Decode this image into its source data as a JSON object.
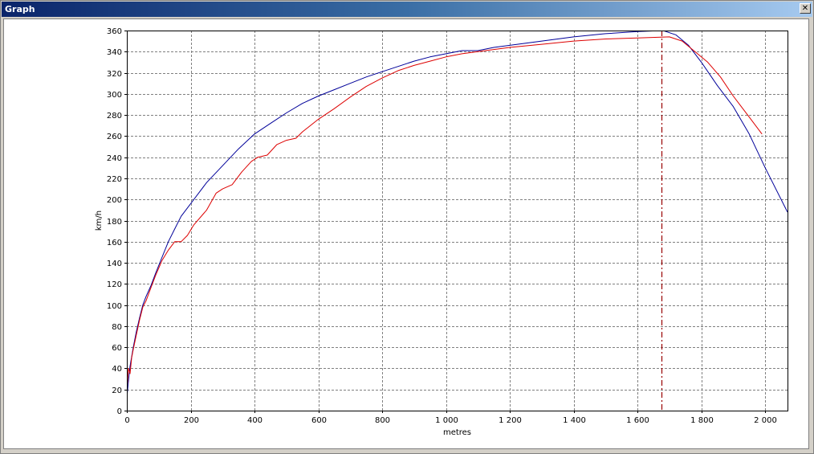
{
  "window": {
    "title": "Graph",
    "close_glyph": "✕"
  },
  "chart_data": {
    "type": "line",
    "title": "",
    "xlabel": "metres",
    "ylabel": "km/h",
    "xlim": [
      0,
      2070
    ],
    "ylim": [
      0,
      360
    ],
    "grid": true,
    "x_ticks": [
      0,
      200,
      400,
      600,
      800,
      1000,
      1200,
      1400,
      1600,
      1800,
      2000
    ],
    "x_tick_labels": [
      "0",
      "200",
      "400",
      "600",
      "800",
      "1 000",
      "1 200",
      "1 400",
      "1 600",
      "1 800",
      "2 000"
    ],
    "y_ticks": [
      0,
      20,
      40,
      60,
      80,
      100,
      120,
      140,
      160,
      180,
      200,
      220,
      240,
      260,
      280,
      300,
      320,
      340,
      360
    ],
    "y_tick_labels": [
      "0",
      "20",
      "40",
      "60",
      "80",
      "100",
      "120",
      "140",
      "160",
      "180",
      "200",
      "220",
      "240",
      "260",
      "280",
      "300",
      "320",
      "340",
      "360"
    ],
    "marker_line": {
      "x": 1675,
      "color": "#990000"
    },
    "series": [
      {
        "color": "#000099",
        "points": [
          [
            0,
            12
          ],
          [
            5,
            28
          ],
          [
            10,
            42
          ],
          [
            20,
            60
          ],
          [
            30,
            75
          ],
          [
            40,
            88
          ],
          [
            50,
            100
          ],
          [
            60,
            108
          ],
          [
            75,
            118
          ],
          [
            90,
            130
          ],
          [
            110,
            145
          ],
          [
            130,
            160
          ],
          [
            150,
            172
          ],
          [
            170,
            184
          ],
          [
            200,
            196
          ],
          [
            250,
            216
          ],
          [
            300,
            232
          ],
          [
            350,
            248
          ],
          [
            400,
            262
          ],
          [
            450,
            272
          ],
          [
            500,
            282
          ],
          [
            550,
            291
          ],
          [
            600,
            298
          ],
          [
            650,
            304
          ],
          [
            700,
            310
          ],
          [
            750,
            316
          ],
          [
            800,
            321
          ],
          [
            850,
            326
          ],
          [
            900,
            331
          ],
          [
            950,
            335
          ],
          [
            1000,
            338
          ],
          [
            1050,
            341
          ],
          [
            1100,
            341
          ],
          [
            1150,
            344
          ],
          [
            1200,
            346
          ],
          [
            1300,
            350
          ],
          [
            1400,
            354
          ],
          [
            1500,
            357
          ],
          [
            1600,
            359
          ],
          [
            1680,
            360
          ],
          [
            1720,
            356
          ],
          [
            1760,
            346
          ],
          [
            1800,
            330
          ],
          [
            1850,
            308
          ],
          [
            1900,
            288
          ],
          [
            1950,
            262
          ],
          [
            2000,
            230
          ],
          [
            2070,
            188
          ]
        ]
      },
      {
        "color": "#dd0000",
        "points": [
          [
            0,
            18
          ],
          [
            5,
            40
          ],
          [
            10,
            35
          ],
          [
            15,
            50
          ],
          [
            20,
            58
          ],
          [
            30,
            72
          ],
          [
            40,
            86
          ],
          [
            50,
            98
          ],
          [
            60,
            104
          ],
          [
            75,
            116
          ],
          [
            90,
            128
          ],
          [
            110,
            142
          ],
          [
            130,
            152
          ],
          [
            150,
            160
          ],
          [
            170,
            160
          ],
          [
            190,
            166
          ],
          [
            210,
            176
          ],
          [
            250,
            190
          ],
          [
            280,
            206
          ],
          [
            300,
            210
          ],
          [
            330,
            214
          ],
          [
            360,
            226
          ],
          [
            390,
            236
          ],
          [
            410,
            240
          ],
          [
            440,
            242
          ],
          [
            470,
            252
          ],
          [
            500,
            256
          ],
          [
            530,
            258
          ],
          [
            550,
            264
          ],
          [
            600,
            276
          ],
          [
            650,
            286
          ],
          [
            700,
            297
          ],
          [
            750,
            307
          ],
          [
            800,
            315
          ],
          [
            850,
            322
          ],
          [
            900,
            327
          ],
          [
            950,
            331
          ],
          [
            1000,
            335
          ],
          [
            1050,
            338
          ],
          [
            1100,
            340
          ],
          [
            1200,
            344
          ],
          [
            1300,
            347
          ],
          [
            1400,
            350
          ],
          [
            1500,
            352
          ],
          [
            1600,
            353
          ],
          [
            1700,
            354
          ],
          [
            1740,
            350
          ],
          [
            1780,
            340
          ],
          [
            1820,
            330
          ],
          [
            1860,
            316
          ],
          [
            1900,
            298
          ],
          [
            1950,
            278
          ],
          [
            1990,
            262
          ]
        ]
      }
    ]
  }
}
